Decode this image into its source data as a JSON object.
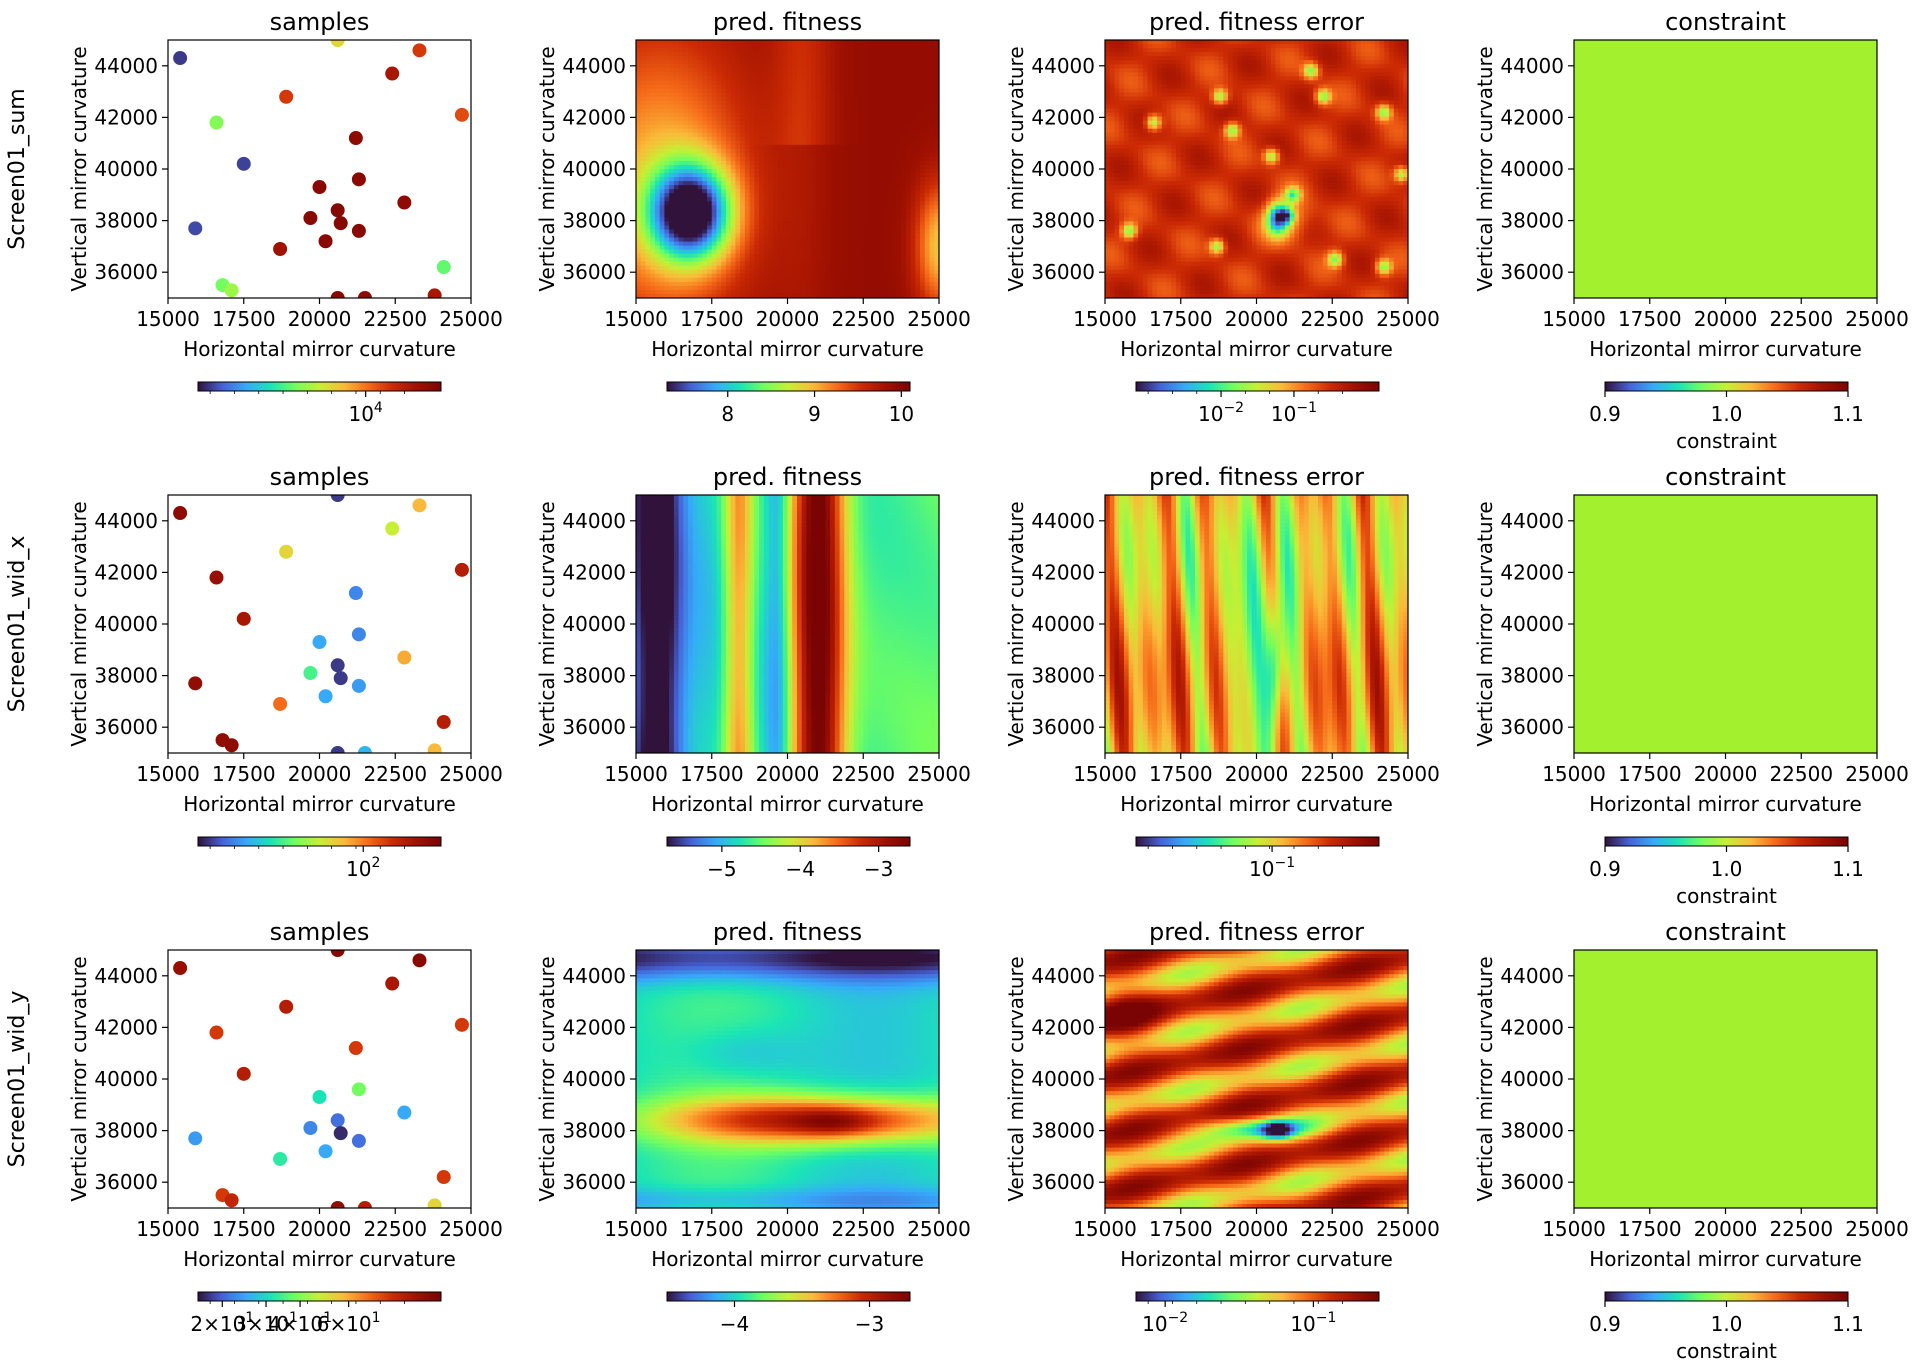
{
  "figure": {
    "row_labels": [
      "Screen01_sum",
      "Screen01_wid_x",
      "Screen01_wid_y"
    ],
    "panel_titles": [
      "samples",
      "pred.  fitness",
      "pred.  fitness error",
      "constraint"
    ],
    "xlabel": "Horizontal mirror curvature",
    "ylabel": "Vertical mirror curvature",
    "x_ticks": [
      "15000",
      "17500",
      "20000",
      "22500",
      "25000"
    ],
    "y_ticks": [
      "36000",
      "38000",
      "40000",
      "42000",
      "44000"
    ],
    "xlim": [
      15000,
      25000
    ],
    "ylim": [
      35000,
      45000
    ],
    "colormap": "turbo",
    "constraint_color": "#a3f02e"
  },
  "chart_data": [
    {
      "type": "scatter",
      "row": "Screen01_sum",
      "title": "samples",
      "xlabel": "Horizontal mirror curvature",
      "ylabel": "Vertical mirror curvature",
      "xlim": [
        15000,
        25000
      ],
      "ylim": [
        35000,
        45000
      ],
      "points": [
        {
          "x": 15400,
          "y": 44300,
          "c": 0.05
        },
        {
          "x": 20600,
          "y": 45000,
          "c": 0.55
        },
        {
          "x": 23300,
          "y": 44600,
          "c": 0.78
        },
        {
          "x": 22400,
          "y": 43700,
          "c": 0.88
        },
        {
          "x": 16600,
          "y": 41800,
          "c": 0.42
        },
        {
          "x": 18900,
          "y": 42800,
          "c": 0.78
        },
        {
          "x": 24700,
          "y": 42100,
          "c": 0.75
        },
        {
          "x": 17500,
          "y": 40200,
          "c": 0.06
        },
        {
          "x": 21200,
          "y": 41200,
          "c": 0.95
        },
        {
          "x": 20000,
          "y": 39300,
          "c": 0.96
        },
        {
          "x": 21300,
          "y": 39600,
          "c": 0.96
        },
        {
          "x": 15900,
          "y": 37700,
          "c": 0.07
        },
        {
          "x": 19700,
          "y": 38100,
          "c": 0.96
        },
        {
          "x": 20600,
          "y": 38400,
          "c": 0.97
        },
        {
          "x": 20700,
          "y": 37900,
          "c": 0.97
        },
        {
          "x": 21300,
          "y": 37600,
          "c": 0.96
        },
        {
          "x": 22800,
          "y": 38700,
          "c": 0.95
        },
        {
          "x": 20200,
          "y": 37200,
          "c": 0.96
        },
        {
          "x": 18700,
          "y": 36900,
          "c": 0.9
        },
        {
          "x": 24100,
          "y": 36200,
          "c": 0.38
        },
        {
          "x": 16800,
          "y": 35500,
          "c": 0.4
        },
        {
          "x": 17100,
          "y": 35300,
          "c": 0.45
        },
        {
          "x": 20600,
          "y": 35000,
          "c": 0.96
        },
        {
          "x": 21500,
          "y": 35000,
          "c": 0.95
        },
        {
          "x": 23800,
          "y": 35100,
          "c": 0.88
        }
      ],
      "colorbar": {
        "scale": "log",
        "ticks": [
          "10^4"
        ]
      }
    },
    {
      "type": "heatmap",
      "row": "Screen01_sum",
      "title": "pred.  fitness",
      "xlabel": "Horizontal mirror curvature",
      "ylabel": "Vertical mirror curvature",
      "xlim": [
        15000,
        25000
      ],
      "ylim": [
        35000,
        45000
      ],
      "colorbar": {
        "scale": "linear",
        "min": 7.3,
        "max": 10.1,
        "ticks": [
          "8",
          "9",
          "10"
        ]
      }
    },
    {
      "type": "heatmap",
      "row": "Screen01_sum",
      "title": "pred.  fitness error",
      "xlabel": "Horizontal mirror curvature",
      "ylabel": "Vertical mirror curvature",
      "xlim": [
        15000,
        25000
      ],
      "ylim": [
        35000,
        45000
      ],
      "colorbar": {
        "scale": "log",
        "ticks": [
          "10^-2",
          "10^-1"
        ]
      }
    },
    {
      "type": "heatmap",
      "row": "Screen01_sum",
      "title": "constraint",
      "xlabel": "Horizontal mirror curvature",
      "ylabel": "Vertical mirror curvature",
      "xlim": [
        15000,
        25000
      ],
      "ylim": [
        35000,
        45000
      ],
      "uniform_value": 1.0,
      "colorbar": {
        "scale": "linear",
        "min": 0.9,
        "max": 1.1,
        "ticks": [
          "0.9",
          "1.0",
          "1.1"
        ],
        "label": "constraint"
      }
    },
    {
      "type": "scatter",
      "row": "Screen01_wid_x",
      "title": "samples",
      "xlabel": "Horizontal mirror curvature",
      "ylabel": "Vertical mirror curvature",
      "xlim": [
        15000,
        25000
      ],
      "ylim": [
        35000,
        45000
      ],
      "points": [
        {
          "x": 15400,
          "y": 44300,
          "c": 0.95
        },
        {
          "x": 20600,
          "y": 45000,
          "c": 0.05
        },
        {
          "x": 23300,
          "y": 44600,
          "c": 0.6
        },
        {
          "x": 22400,
          "y": 43700,
          "c": 0.5
        },
        {
          "x": 16600,
          "y": 41800,
          "c": 0.92
        },
        {
          "x": 18900,
          "y": 42800,
          "c": 0.55
        },
        {
          "x": 24700,
          "y": 42100,
          "c": 0.85
        },
        {
          "x": 17500,
          "y": 40200,
          "c": 0.88
        },
        {
          "x": 21200,
          "y": 41200,
          "c": 0.15
        },
        {
          "x": 20000,
          "y": 39300,
          "c": 0.2
        },
        {
          "x": 21300,
          "y": 39600,
          "c": 0.15
        },
        {
          "x": 15900,
          "y": 37700,
          "c": 0.94
        },
        {
          "x": 19700,
          "y": 38100,
          "c": 0.35
        },
        {
          "x": 20600,
          "y": 38400,
          "c": 0.05
        },
        {
          "x": 20700,
          "y": 37900,
          "c": 0.05
        },
        {
          "x": 21300,
          "y": 37600,
          "c": 0.18
        },
        {
          "x": 22800,
          "y": 38700,
          "c": 0.62
        },
        {
          "x": 20200,
          "y": 37200,
          "c": 0.2
        },
        {
          "x": 18700,
          "y": 36900,
          "c": 0.7
        },
        {
          "x": 24100,
          "y": 36200,
          "c": 0.85
        },
        {
          "x": 16800,
          "y": 35500,
          "c": 0.94
        },
        {
          "x": 17100,
          "y": 35300,
          "c": 0.95
        },
        {
          "x": 20600,
          "y": 35000,
          "c": 0.05
        },
        {
          "x": 21500,
          "y": 35000,
          "c": 0.22
        },
        {
          "x": 23800,
          "y": 35100,
          "c": 0.6
        }
      ],
      "colorbar": {
        "scale": "log",
        "ticks": [
          "10^2"
        ]
      }
    },
    {
      "type": "heatmap",
      "row": "Screen01_wid_x",
      "title": "pred.  fitness",
      "xlabel": "Horizontal mirror curvature",
      "ylabel": "Vertical mirror curvature",
      "xlim": [
        15000,
        25000
      ],
      "ylim": [
        35000,
        45000
      ],
      "colorbar": {
        "scale": "linear",
        "min": -5.7,
        "max": -2.6,
        "ticks": [
          "−5",
          "−4",
          "−3"
        ]
      }
    },
    {
      "type": "heatmap",
      "row": "Screen01_wid_x",
      "title": "pred.  fitness error",
      "xlabel": "Horizontal mirror curvature",
      "ylabel": "Vertical mirror curvature",
      "xlim": [
        15000,
        25000
      ],
      "ylim": [
        35000,
        45000
      ],
      "colorbar": {
        "scale": "log",
        "ticks": [
          "10^-1"
        ]
      }
    },
    {
      "type": "heatmap",
      "row": "Screen01_wid_x",
      "title": "constraint",
      "xlabel": "Horizontal mirror curvature",
      "ylabel": "Vertical mirror curvature",
      "xlim": [
        15000,
        25000
      ],
      "ylim": [
        35000,
        45000
      ],
      "uniform_value": 1.0,
      "colorbar": {
        "scale": "linear",
        "min": 0.9,
        "max": 1.1,
        "ticks": [
          "0.9",
          "1.0",
          "1.1"
        ],
        "label": "constraint"
      }
    },
    {
      "type": "scatter",
      "row": "Screen01_wid_y",
      "title": "samples",
      "xlabel": "Horizontal mirror curvature",
      "ylabel": "Vertical mirror curvature",
      "xlim": [
        15000,
        25000
      ],
      "ylim": [
        35000,
        45000
      ],
      "points": [
        {
          "x": 15400,
          "y": 44300,
          "c": 0.92
        },
        {
          "x": 20600,
          "y": 45000,
          "c": 0.96
        },
        {
          "x": 23300,
          "y": 44600,
          "c": 0.96
        },
        {
          "x": 22400,
          "y": 43700,
          "c": 0.88
        },
        {
          "x": 16600,
          "y": 41800,
          "c": 0.78
        },
        {
          "x": 18900,
          "y": 42800,
          "c": 0.85
        },
        {
          "x": 24700,
          "y": 42100,
          "c": 0.78
        },
        {
          "x": 17500,
          "y": 40200,
          "c": 0.85
        },
        {
          "x": 21200,
          "y": 41200,
          "c": 0.78
        },
        {
          "x": 20000,
          "y": 39300,
          "c": 0.3
        },
        {
          "x": 21300,
          "y": 39600,
          "c": 0.4
        },
        {
          "x": 15900,
          "y": 37700,
          "c": 0.18
        },
        {
          "x": 19700,
          "y": 38100,
          "c": 0.15
        },
        {
          "x": 20600,
          "y": 38400,
          "c": 0.12
        },
        {
          "x": 20700,
          "y": 37900,
          "c": 0.03
        },
        {
          "x": 21300,
          "y": 37600,
          "c": 0.12
        },
        {
          "x": 22800,
          "y": 38700,
          "c": 0.2
        },
        {
          "x": 20200,
          "y": 37200,
          "c": 0.2
        },
        {
          "x": 18700,
          "y": 36900,
          "c": 0.32
        },
        {
          "x": 24100,
          "y": 36200,
          "c": 0.78
        },
        {
          "x": 16800,
          "y": 35500,
          "c": 0.78
        },
        {
          "x": 17100,
          "y": 35300,
          "c": 0.82
        },
        {
          "x": 20600,
          "y": 35000,
          "c": 0.94
        },
        {
          "x": 21500,
          "y": 35000,
          "c": 0.85
        },
        {
          "x": 23800,
          "y": 35100,
          "c": 0.55
        }
      ],
      "colorbar": {
        "scale": "log",
        "ticks": [
          "2×10^1",
          "3×10^1",
          "4×10^1",
          "6×10^1"
        ]
      }
    },
    {
      "type": "heatmap",
      "row": "Screen01_wid_y",
      "title": "pred.  fitness",
      "xlabel": "Horizontal mirror curvature",
      "ylabel": "Vertical mirror curvature",
      "xlim": [
        15000,
        25000
      ],
      "ylim": [
        35000,
        45000
      ],
      "colorbar": {
        "scale": "linear",
        "min": -4.5,
        "max": -2.7,
        "ticks": [
          "−4",
          "−3"
        ]
      }
    },
    {
      "type": "heatmap",
      "row": "Screen01_wid_y",
      "title": "pred.  fitness error",
      "xlabel": "Horizontal mirror curvature",
      "ylabel": "Vertical mirror curvature",
      "xlim": [
        15000,
        25000
      ],
      "ylim": [
        35000,
        45000
      ],
      "colorbar": {
        "scale": "log",
        "ticks": [
          "10^-2",
          "10^-1"
        ]
      }
    },
    {
      "type": "heatmap",
      "row": "Screen01_wid_y",
      "title": "constraint",
      "xlabel": "Horizontal mirror curvature",
      "ylabel": "Vertical mirror curvature",
      "xlim": [
        15000,
        25000
      ],
      "ylim": [
        35000,
        45000
      ],
      "uniform_value": 1.0,
      "colorbar": {
        "scale": "linear",
        "min": 0.9,
        "max": 1.1,
        "ticks": [
          "0.9",
          "1.0",
          "1.1"
        ],
        "label": "constraint"
      }
    }
  ]
}
